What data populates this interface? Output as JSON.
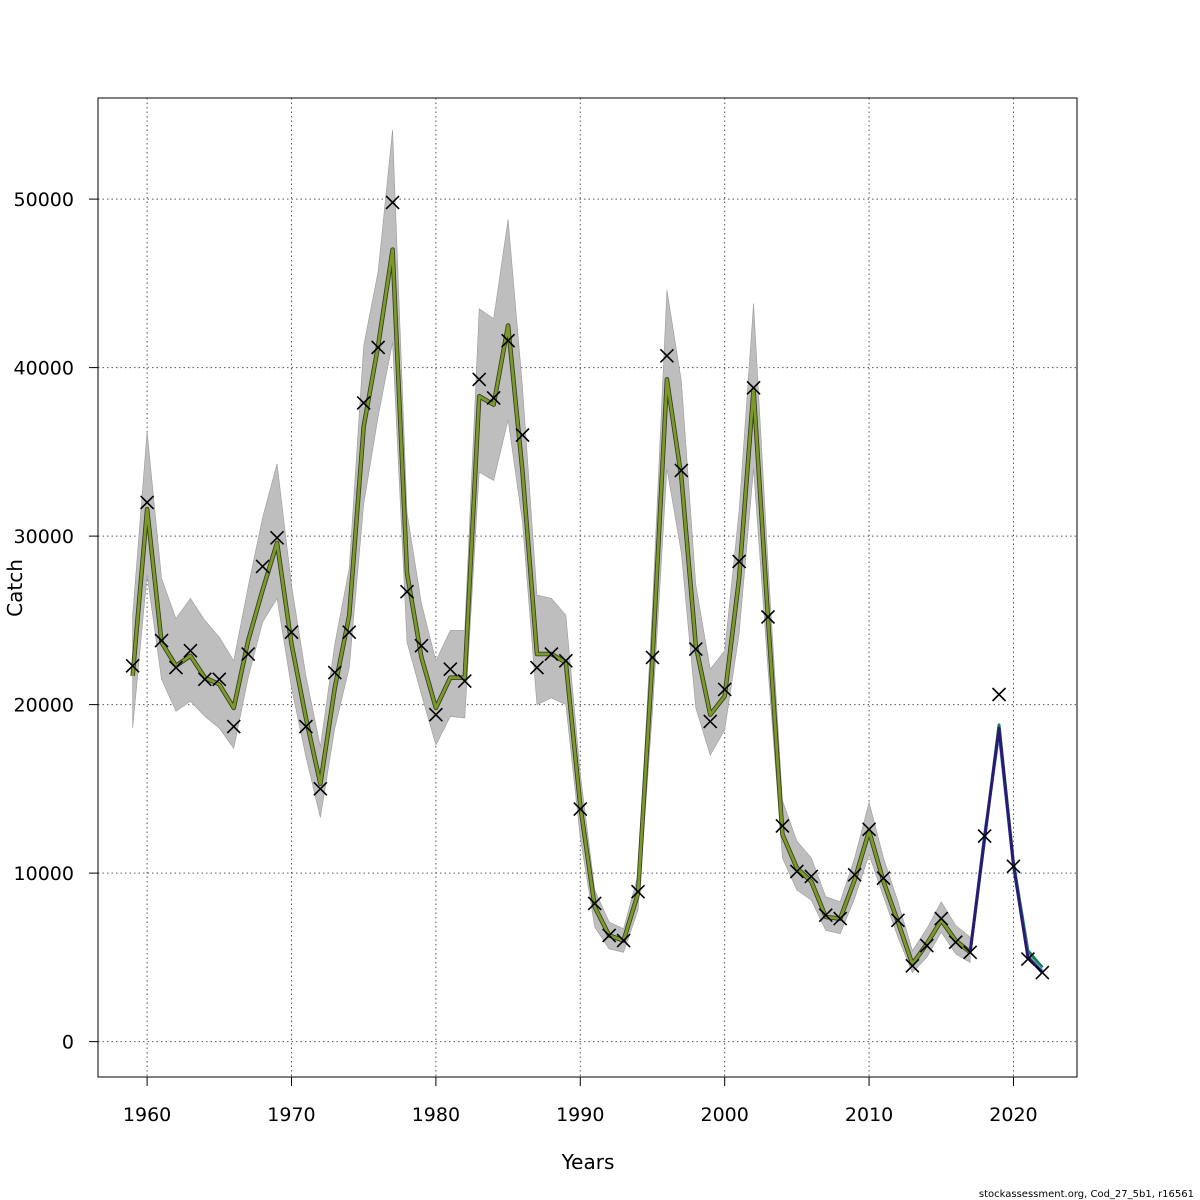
{
  "chart_data": {
    "type": "line",
    "xlabel": "Years",
    "ylabel": "Catch",
    "xlim": [
      1956.6,
      2024.4
    ],
    "ylim": [
      -2100,
      56000
    ],
    "x_ticks": [
      1960,
      1970,
      1980,
      1990,
      2000,
      2010,
      2020
    ],
    "y_ticks": [
      0,
      10000,
      20000,
      30000,
      40000,
      50000
    ],
    "x_tick_labels": [
      "1960",
      "1970",
      "1980",
      "1990",
      "2000",
      "2010",
      "2020"
    ],
    "y_tick_labels": [
      "0",
      "10000",
      "20000",
      "30000",
      "40000",
      "50000"
    ],
    "grid": true,
    "footer": "stockassessment.org, Cod_27_5b1, r16561",
    "colors": {
      "band": "#bebebe",
      "fit_line": "#7a9a2a",
      "retro_2018": "#1a8050",
      "retro_2019": "#5ea8d8",
      "retro_2020": "#2b1a70",
      "marker": "#000000",
      "grid": "#555555"
    },
    "observed": {
      "x": [
        1959,
        1960,
        1961,
        1962,
        1963,
        1964,
        1965,
        1966,
        1967,
        1968,
        1969,
        1970,
        1971,
        1972,
        1973,
        1974,
        1975,
        1976,
        1977,
        1978,
        1979,
        1980,
        1981,
        1982,
        1983,
        1984,
        1985,
        1986,
        1987,
        1988,
        1989,
        1990,
        1991,
        1992,
        1993,
        1994,
        1995,
        1996,
        1997,
        1998,
        1999,
        2000,
        2001,
        2002,
        2003,
        2004,
        2005,
        2006,
        2007,
        2008,
        2009,
        2010,
        2011,
        2012,
        2013,
        2014,
        2015,
        2016,
        2017,
        2018,
        2019,
        2020,
        2021,
        2022
      ],
      "y": [
        22300,
        32000,
        23800,
        22200,
        23200,
        21500,
        21500,
        18700,
        23000,
        28200,
        29900,
        24300,
        18700,
        15000,
        21900,
        24300,
        37900,
        41200,
        49800,
        26700,
        23500,
        19400,
        22100,
        21400,
        39300,
        38200,
        41600,
        36000,
        22200,
        23000,
        22600,
        13800,
        8200,
        6300,
        6000,
        8900,
        22800,
        40700,
        33900,
        23300,
        19000,
        20900,
        28500,
        38800,
        25200,
        12800,
        10100,
        9800,
        7500,
        7300,
        9900,
        12600,
        9700,
        7200,
        4500,
        5700,
        7300,
        5900,
        5300,
        12200,
        20600,
        10400,
        4900,
        4100
      ]
    },
    "fit": {
      "x": [
        1959,
        1960,
        1961,
        1962,
        1963,
        1964,
        1965,
        1966,
        1967,
        1968,
        1969,
        1970,
        1971,
        1972,
        1973,
        1974,
        1975,
        1976,
        1977,
        1978,
        1979,
        1980,
        1981,
        1982,
        1983,
        1984,
        1985,
        1986,
        1987,
        1988,
        1989,
        1990,
        1991,
        1992,
        1993,
        1994,
        1995,
        1996,
        1997,
        1998,
        1999,
        2000,
        2001,
        2002,
        2003,
        2004,
        2005,
        2006,
        2007,
        2008,
        2009,
        2010,
        2011,
        2012,
        2013,
        2014,
        2015,
        2016,
        2017
      ],
      "y": [
        21700,
        31600,
        23700,
        22300,
        22900,
        21600,
        21200,
        19800,
        23800,
        26800,
        29600,
        23600,
        19200,
        15300,
        21000,
        25300,
        36500,
        41300,
        47000,
        27800,
        22800,
        19800,
        21600,
        21600,
        38300,
        37800,
        42500,
        33800,
        23000,
        23000,
        22500,
        14000,
        8000,
        6300,
        6000,
        8800,
        22700,
        39300,
        33500,
        23500,
        19400,
        20500,
        27500,
        38700,
        25100,
        12300,
        10300,
        9500,
        7400,
        7300,
        9600,
        12500,
        9500,
        7100,
        4600,
        5800,
        7200,
        6000,
        5300
      ]
    },
    "band": {
      "upper": [
        25300,
        36200,
        27500,
        25100,
        26300,
        25000,
        24000,
        22600,
        27000,
        31100,
        34300,
        27100,
        21700,
        17500,
        23600,
        28100,
        41300,
        45700,
        54100,
        31400,
        26000,
        22600,
        24400,
        24400,
        43500,
        42900,
        48800,
        38800,
        26500,
        26300,
        25300,
        15900,
        9000,
        7100,
        6700,
        9900,
        25800,
        44600,
        39200,
        27100,
        22100,
        23200,
        31500,
        43800,
        28400,
        14300,
        11900,
        10900,
        8600,
        8300,
        10900,
        14200,
        10900,
        8300,
        5400,
        6700,
        8300,
        6900,
        6200
      ],
      "lower": [
        18600,
        27700,
        21500,
        19600,
        20200,
        19300,
        18600,
        17400,
        21600,
        24900,
        26300,
        21000,
        16900,
        13300,
        18600,
        22200,
        31900,
        37100,
        41500,
        23700,
        20600,
        17600,
        19300,
        19200,
        33800,
        33300,
        36900,
        30800,
        20000,
        20400,
        20000,
        12100,
        6800,
        5500,
        5300,
        7800,
        19600,
        34000,
        29000,
        19800,
        17000,
        18500,
        24200,
        34000,
        22100,
        10900,
        9000,
        8400,
        6600,
        6400,
        8500,
        11100,
        8600,
        6200,
        4100,
        5000,
        6500,
        5200,
        4700
      ]
    },
    "series": [
      {
        "x": [
          2017,
          2018,
          2019,
          2020,
          2021,
          2022
        ],
        "y": [
          5300,
          12000,
          18800,
          10600,
          5400,
          4400
        ]
      },
      {
        "x": [
          2017,
          2018,
          2019,
          2020,
          2021,
          2022
        ],
        "y": [
          5300,
          12300,
          18300,
          10400,
          5100,
          4200
        ]
      },
      {
        "x": [
          2017,
          2018,
          2019,
          2020,
          2021,
          2022
        ],
        "y": [
          5300,
          12100,
          18600,
          10500,
          5000,
          4100
        ]
      }
    ]
  }
}
